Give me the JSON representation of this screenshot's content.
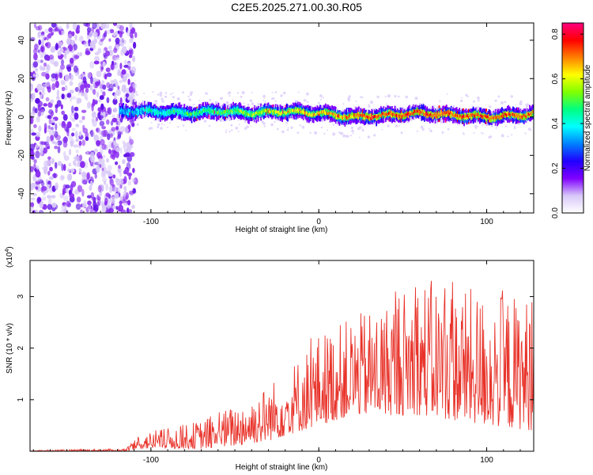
{
  "title": "C2E5.2025.271.00.30.R05",
  "chart_data": [
    {
      "type": "heatmap",
      "name": "spectrogram",
      "xlabel": "Height of straight line (km)",
      "ylabel": "Frequency (Hz)",
      "xlim": [
        -172,
        128
      ],
      "ylim": [
        -50,
        49
      ],
      "x_ticks": [
        -100,
        0,
        100
      ],
      "y_ticks": [
        -40,
        -20,
        0,
        20,
        40
      ],
      "colorbar": {
        "label": "Normalized spectral amplitude",
        "range": [
          0.0,
          0.85
        ],
        "ticks": [
          0.0,
          0.2,
          0.4,
          0.6,
          0.8
        ],
        "colors": [
          "#ffffff",
          "#d8c8f8",
          "#8000ff",
          "#2000ff",
          "#0080ff",
          "#00ffff",
          "#00ff80",
          "#80ff00",
          "#ffff00",
          "#ff8000",
          "#ff0000",
          "#ff0080"
        ]
      },
      "signal_track": {
        "x": [
          -120,
          -100,
          -80,
          -60,
          -40,
          -20,
          0,
          20,
          40,
          60,
          80,
          100,
          120,
          128
        ],
        "freq_hz": [
          3,
          3,
          2,
          3,
          2,
          3,
          2,
          0,
          1,
          2,
          1,
          0,
          1,
          2
        ],
        "noise_region_x": [
          -172,
          -115
        ]
      }
    },
    {
      "type": "line",
      "name": "snr",
      "xlabel": "Height of straight line (km)",
      "ylabel": "SNR (10 * v/v)",
      "yscale_label_base": "(x10",
      "yscale_label_exp": "4",
      "yscale_label_close": ")",
      "xlim": [
        -172,
        128
      ],
      "ylim": [
        0,
        3.7
      ],
      "x_ticks": [
        -100,
        0,
        100
      ],
      "y_ticks": [
        1,
        2,
        3
      ],
      "series": [
        {
          "name": "SNR",
          "color": "#e8332a",
          "envelope": {
            "x": [
              -172,
              -115,
              -105,
              -90,
              -70,
              -50,
              -30,
              -10,
              0,
              20,
              40,
              60,
              80,
              100,
              128
            ],
            "min": [
              0.0,
              0.0,
              0.05,
              0.05,
              0.05,
              0.1,
              0.2,
              0.4,
              0.5,
              0.7,
              0.7,
              0.7,
              0.6,
              0.5,
              0.4
            ],
            "max": [
              0.02,
              0.05,
              0.35,
              0.45,
              0.6,
              0.9,
              1.3,
              1.9,
              2.3,
              2.6,
              2.9,
              3.4,
              3.2,
              3.1,
              3.0
            ]
          }
        }
      ]
    }
  ]
}
